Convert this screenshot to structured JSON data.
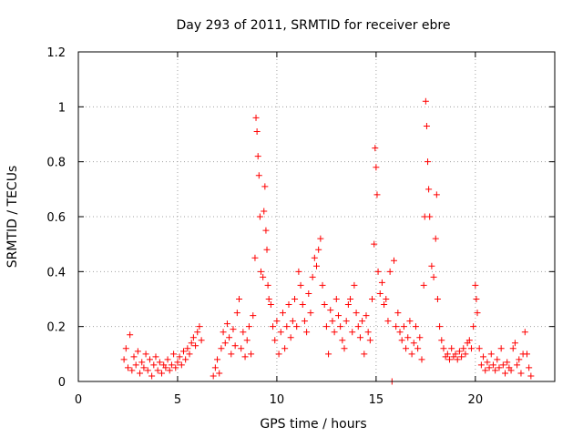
{
  "chart_data": {
    "type": "scatter",
    "title": "Day 293 of 2011, SRMTID for receiver ebre",
    "xlabel": "GPS time / hours",
    "ylabel": "SRMTID / TECUs",
    "xlim": [
      0,
      24
    ],
    "ylim": [
      0,
      1.2
    ],
    "xticks": [
      0,
      5,
      10,
      15,
      20
    ],
    "yticks": [
      0,
      0.2,
      0.4,
      0.6,
      0.8,
      1,
      1.2
    ],
    "ytick_labels": [
      "0",
      "0.2",
      "0.4",
      "0.6",
      "0.8",
      "1",
      "1.2"
    ],
    "grid": true,
    "marker": "+",
    "marker_color": "#ff0000",
    "series": [
      {
        "name": "SRMTID",
        "points": [
          [
            2.3,
            0.08
          ],
          [
            2.4,
            0.12
          ],
          [
            2.5,
            0.05
          ],
          [
            2.6,
            0.17
          ],
          [
            2.7,
            0.04
          ],
          [
            2.8,
            0.09
          ],
          [
            2.9,
            0.06
          ],
          [
            3.0,
            0.11
          ],
          [
            3.1,
            0.03
          ],
          [
            3.2,
            0.07
          ],
          [
            3.3,
            0.05
          ],
          [
            3.4,
            0.1
          ],
          [
            3.5,
            0.04
          ],
          [
            3.6,
            0.08
          ],
          [
            3.7,
            0.02
          ],
          [
            3.8,
            0.06
          ],
          [
            3.9,
            0.09
          ],
          [
            4.0,
            0.04
          ],
          [
            4.1,
            0.07
          ],
          [
            4.2,
            0.03
          ],
          [
            4.3,
            0.06
          ],
          [
            4.4,
            0.05
          ],
          [
            4.5,
            0.08
          ],
          [
            4.6,
            0.04
          ],
          [
            4.7,
            0.06
          ],
          [
            4.8,
            0.1
          ],
          [
            4.9,
            0.05
          ],
          [
            5.0,
            0.07
          ],
          [
            5.1,
            0.09
          ],
          [
            5.2,
            0.06
          ],
          [
            5.3,
            0.11
          ],
          [
            5.4,
            0.08
          ],
          [
            5.5,
            0.12
          ],
          [
            5.6,
            0.1
          ],
          [
            5.7,
            0.14
          ],
          [
            5.8,
            0.16
          ],
          [
            5.9,
            0.13
          ],
          [
            6.0,
            0.18
          ],
          [
            6.1,
            0.2
          ],
          [
            6.2,
            0.15
          ],
          [
            6.8,
            0.02
          ],
          [
            6.9,
            0.05
          ],
          [
            7.0,
            0.08
          ],
          [
            7.1,
            0.03
          ],
          [
            7.2,
            0.12
          ],
          [
            7.3,
            0.18
          ],
          [
            7.4,
            0.14
          ],
          [
            7.5,
            0.21
          ],
          [
            7.6,
            0.16
          ],
          [
            7.7,
            0.1
          ],
          [
            7.8,
            0.19
          ],
          [
            7.9,
            0.13
          ],
          [
            8.0,
            0.25
          ],
          [
            8.1,
            0.3
          ],
          [
            8.2,
            0.12
          ],
          [
            8.3,
            0.18
          ],
          [
            8.4,
            0.09
          ],
          [
            8.5,
            0.15
          ],
          [
            8.6,
            0.2
          ],
          [
            8.7,
            0.1
          ],
          [
            8.8,
            0.24
          ],
          [
            8.9,
            0.45
          ],
          [
            8.95,
            0.96
          ],
          [
            9.0,
            0.91
          ],
          [
            9.05,
            0.82
          ],
          [
            9.1,
            0.75
          ],
          [
            9.15,
            0.6
          ],
          [
            9.2,
            0.4
          ],
          [
            9.3,
            0.38
          ],
          [
            9.35,
            0.62
          ],
          [
            9.4,
            0.71
          ],
          [
            9.45,
            0.55
          ],
          [
            9.5,
            0.48
          ],
          [
            9.55,
            0.35
          ],
          [
            9.6,
            0.3
          ],
          [
            9.7,
            0.28
          ],
          [
            9.8,
            0.2
          ],
          [
            9.9,
            0.15
          ],
          [
            10.0,
            0.22
          ],
          [
            10.1,
            0.1
          ],
          [
            10.2,
            0.18
          ],
          [
            10.3,
            0.25
          ],
          [
            10.4,
            0.12
          ],
          [
            10.5,
            0.2
          ],
          [
            10.6,
            0.28
          ],
          [
            10.7,
            0.16
          ],
          [
            10.8,
            0.22
          ],
          [
            10.9,
            0.3
          ],
          [
            11.0,
            0.2
          ],
          [
            11.1,
            0.4
          ],
          [
            11.2,
            0.35
          ],
          [
            11.3,
            0.28
          ],
          [
            11.4,
            0.22
          ],
          [
            11.5,
            0.18
          ],
          [
            11.6,
            0.32
          ],
          [
            11.7,
            0.25
          ],
          [
            11.8,
            0.38
          ],
          [
            11.9,
            0.45
          ],
          [
            12.0,
            0.42
          ],
          [
            12.1,
            0.48
          ],
          [
            12.2,
            0.52
          ],
          [
            12.3,
            0.35
          ],
          [
            12.4,
            0.28
          ],
          [
            12.5,
            0.2
          ],
          [
            12.6,
            0.1
          ],
          [
            12.7,
            0.26
          ],
          [
            12.8,
            0.22
          ],
          [
            12.9,
            0.18
          ],
          [
            13.0,
            0.3
          ],
          [
            13.1,
            0.24
          ],
          [
            13.2,
            0.2
          ],
          [
            13.3,
            0.15
          ],
          [
            13.4,
            0.12
          ],
          [
            13.5,
            0.22
          ],
          [
            13.6,
            0.28
          ],
          [
            13.7,
            0.3
          ],
          [
            13.8,
            0.18
          ],
          [
            13.9,
            0.35
          ],
          [
            14.0,
            0.25
          ],
          [
            14.1,
            0.2
          ],
          [
            14.2,
            0.16
          ],
          [
            14.3,
            0.22
          ],
          [
            14.4,
            0.1
          ],
          [
            14.5,
            0.24
          ],
          [
            14.6,
            0.18
          ],
          [
            14.7,
            0.15
          ],
          [
            14.8,
            0.3
          ],
          [
            14.9,
            0.5
          ],
          [
            14.95,
            0.85
          ],
          [
            15.0,
            0.78
          ],
          [
            15.05,
            0.68
          ],
          [
            15.1,
            0.4
          ],
          [
            15.2,
            0.32
          ],
          [
            15.3,
            0.36
          ],
          [
            15.4,
            0.28
          ],
          [
            15.5,
            0.3
          ],
          [
            15.6,
            0.22
          ],
          [
            15.7,
            0.4
          ],
          [
            15.8,
            0.0
          ],
          [
            15.9,
            0.44
          ],
          [
            16.0,
            0.2
          ],
          [
            16.1,
            0.25
          ],
          [
            16.2,
            0.18
          ],
          [
            16.3,
            0.15
          ],
          [
            16.4,
            0.2
          ],
          [
            16.5,
            0.12
          ],
          [
            16.6,
            0.16
          ],
          [
            16.7,
            0.22
          ],
          [
            16.8,
            0.1
          ],
          [
            16.9,
            0.14
          ],
          [
            17.0,
            0.2
          ],
          [
            17.1,
            0.12
          ],
          [
            17.2,
            0.16
          ],
          [
            17.3,
            0.08
          ],
          [
            17.4,
            0.35
          ],
          [
            17.45,
            0.6
          ],
          [
            17.5,
            1.02
          ],
          [
            17.55,
            0.93
          ],
          [
            17.6,
            0.8
          ],
          [
            17.65,
            0.7
          ],
          [
            17.7,
            0.6
          ],
          [
            17.8,
            0.42
          ],
          [
            17.9,
            0.38
          ],
          [
            18.0,
            0.52
          ],
          [
            18.05,
            0.68
          ],
          [
            18.1,
            0.3
          ],
          [
            18.2,
            0.2
          ],
          [
            18.3,
            0.15
          ],
          [
            18.4,
            0.12
          ],
          [
            18.5,
            0.09
          ],
          [
            18.6,
            0.1
          ],
          [
            18.7,
            0.08
          ],
          [
            18.8,
            0.12
          ],
          [
            18.9,
            0.09
          ],
          [
            19.0,
            0.1
          ],
          [
            19.1,
            0.08
          ],
          [
            19.2,
            0.11
          ],
          [
            19.3,
            0.09
          ],
          [
            19.4,
            0.12
          ],
          [
            19.5,
            0.1
          ],
          [
            19.6,
            0.14
          ],
          [
            19.7,
            0.15
          ],
          [
            19.8,
            0.12
          ],
          [
            19.9,
            0.2
          ],
          [
            20.0,
            0.35
          ],
          [
            20.05,
            0.3
          ],
          [
            20.1,
            0.25
          ],
          [
            20.2,
            0.12
          ],
          [
            20.3,
            0.06
          ],
          [
            20.4,
            0.09
          ],
          [
            20.5,
            0.04
          ],
          [
            20.6,
            0.07
          ],
          [
            20.7,
            0.05
          ],
          [
            20.8,
            0.1
          ],
          [
            20.9,
            0.06
          ],
          [
            21.0,
            0.04
          ],
          [
            21.1,
            0.08
          ],
          [
            21.2,
            0.05
          ],
          [
            21.3,
            0.12
          ],
          [
            21.4,
            0.06
          ],
          [
            21.5,
            0.03
          ],
          [
            21.6,
            0.07
          ],
          [
            21.7,
            0.05
          ],
          [
            21.8,
            0.04
          ],
          [
            21.9,
            0.12
          ],
          [
            22.0,
            0.14
          ],
          [
            22.1,
            0.06
          ],
          [
            22.2,
            0.08
          ],
          [
            22.3,
            0.03
          ],
          [
            22.4,
            0.1
          ],
          [
            22.5,
            0.18
          ],
          [
            22.6,
            0.1
          ],
          [
            22.7,
            0.05
          ],
          [
            22.8,
            0.02
          ]
        ]
      }
    ]
  }
}
